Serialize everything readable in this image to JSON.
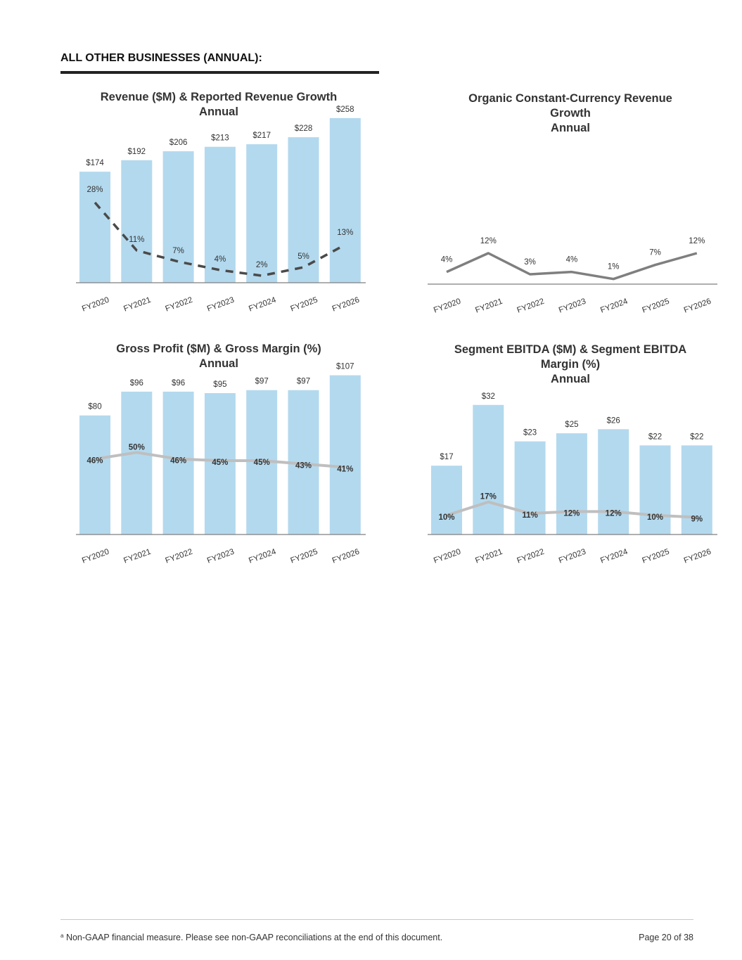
{
  "page": {
    "section_title": "ALL OTHER BUSINESSES (ANNUAL):",
    "footnote_marker": "a",
    "footnote": "Non-GAAP financial measure. Please see non-GAAP reconciliations at the end of this document.",
    "page_number": "Page 20 of 38"
  },
  "colors": {
    "bar": "#b3d9ee",
    "dashed_line": "#4a4a4a",
    "organic_line": "#7f7f7f",
    "margin_line": "#bfbfbf",
    "axis": "#7f7f7f",
    "text": "#333333"
  },
  "chart_data": [
    {
      "id": "revenue",
      "type": "bar+line",
      "title_lines": [
        "Revenue ($M) & Reported Revenue Growth",
        "Annual"
      ],
      "categories": [
        "FY2020",
        "FY2021",
        "FY2022",
        "FY2023",
        "FY2024",
        "FY2025",
        "FY2026"
      ],
      "bar_series": {
        "values": [
          174,
          192,
          206,
          213,
          217,
          228,
          258
        ],
        "labels": [
          "$174",
          "$192",
          "$206",
          "$213",
          "$217",
          "$228",
          "$258"
        ]
      },
      "line_series": {
        "values": [
          28,
          11,
          7,
          4,
          2,
          5,
          13
        ],
        "labels": [
          "28%",
          "11%",
          "7%",
          "4%",
          "2%",
          "5%",
          "13%"
        ],
        "style": "dashed"
      },
      "bar_ylim": [
        0,
        270
      ],
      "line_ylim": [
        0,
        35
      ],
      "grid": false,
      "legend": "none"
    },
    {
      "id": "organic",
      "type": "line",
      "title_lines": [
        "Organic Constant-Currency Revenue",
        "Growth",
        "Annual"
      ],
      "categories": [
        "FY2020",
        "FY2021",
        "FY2022",
        "FY2023",
        "FY2024",
        "FY2025",
        "FY2026"
      ],
      "line_series": {
        "values": [
          4,
          12,
          3,
          4,
          1,
          7,
          12
        ],
        "labels": [
          "4%",
          "12%",
          "3%",
          "4%",
          "1%",
          "7%",
          "12%"
        ],
        "style": "solid"
      },
      "line_ylim": [
        0,
        120
      ],
      "grid": false,
      "legend": "none"
    },
    {
      "id": "gross-profit",
      "type": "bar+line",
      "title_lines": [
        "Gross Profit ($M) & Gross Margin (%)",
        "Annual"
      ],
      "categories": [
        "FY2020",
        "FY2021",
        "FY2022",
        "FY2023",
        "FY2024",
        "FY2025",
        "FY2026"
      ],
      "bar_series": {
        "values": [
          80,
          96,
          96,
          95,
          97,
          97,
          107
        ],
        "labels": [
          "$80",
          "$96",
          "$96",
          "$95",
          "$97",
          "$97",
          "$107"
        ]
      },
      "line_series": {
        "values": [
          46,
          50,
          46,
          45,
          45,
          43,
          41
        ],
        "labels": [
          "46%",
          "50%",
          "46%",
          "45%",
          "45%",
          "43%",
          "41%"
        ],
        "style": "solid"
      },
      "bar_ylim": [
        0,
        112
      ],
      "line_ylim": [
        0,
        105
      ],
      "grid": false,
      "legend": "none"
    },
    {
      "id": "ebitda",
      "type": "bar+line",
      "title_lines": [
        "Segment EBITDA ($M) & Segment EBITDA",
        "Margin (%)",
        "Annual"
      ],
      "categories": [
        "FY2020",
        "FY2021",
        "FY2022",
        "FY2023",
        "FY2024",
        "FY2025",
        "FY2026"
      ],
      "bar_series": {
        "values": [
          17,
          32,
          23,
          25,
          26,
          22,
          22
        ],
        "labels": [
          "$17",
          "$32",
          "$23",
          "$25",
          "$26",
          "$22",
          "$22"
        ]
      },
      "line_series": {
        "values": [
          10,
          17,
          11,
          12,
          12,
          10,
          9
        ],
        "labels": [
          "10%",
          "17%",
          "11%",
          "12%",
          "12%",
          "10%",
          "9%"
        ],
        "style": "solid"
      },
      "bar_ylim": [
        0,
        33
      ],
      "line_ylim": [
        0,
        90
      ],
      "grid": false,
      "legend": "none"
    }
  ]
}
